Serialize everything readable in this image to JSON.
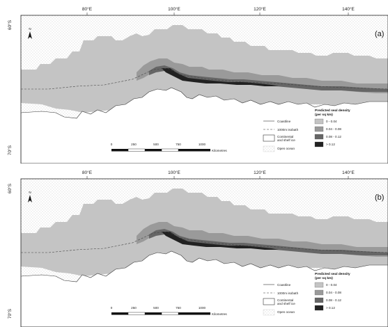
{
  "panels": [
    {
      "label": "(a)",
      "lon_labels": [
        "80°E",
        "100°E",
        "120°E",
        "140°E"
      ],
      "lat_labels": [
        "60°S",
        "70°S"
      ]
    },
    {
      "label": "(b)",
      "lon_labels": [
        "80°E",
        "100°E",
        "120°E",
        "140°E"
      ],
      "lat_labels": [
        "60°S",
        "70°S"
      ]
    }
  ],
  "north_arrow": "N",
  "scale_bar": {
    "ticks": [
      "0",
      "250",
      "500",
      "750",
      "1000"
    ],
    "unit": "Kilometres"
  },
  "legend_left": {
    "items": [
      {
        "label": "Coastline",
        "style": "line"
      },
      {
        "label": "1000m isobath",
        "style": "dashed"
      },
      {
        "label": "Continental and shelf ice",
        "style": "box-white"
      },
      {
        "label": "Open ocean",
        "style": "box-dots"
      }
    ]
  },
  "legend_right": {
    "title": "Predicted seal density (per sq km)",
    "classes": [
      {
        "label": "0 - 0.04",
        "color": "#c4c4c4"
      },
      {
        "label": "0.04 - 0.08",
        "color": "#9a9a9a"
      },
      {
        "label": "0.08 - 0.12",
        "color": "#666666"
      },
      {
        "label": "> 0.12",
        "color": "#222222"
      }
    ]
  },
  "colors": {
    "density_low": "#c4c4c4",
    "density_mid": "#9a9a9a",
    "density_high": "#666666",
    "density_max": "#222222",
    "ocean_dots": "#b8b8b8"
  }
}
